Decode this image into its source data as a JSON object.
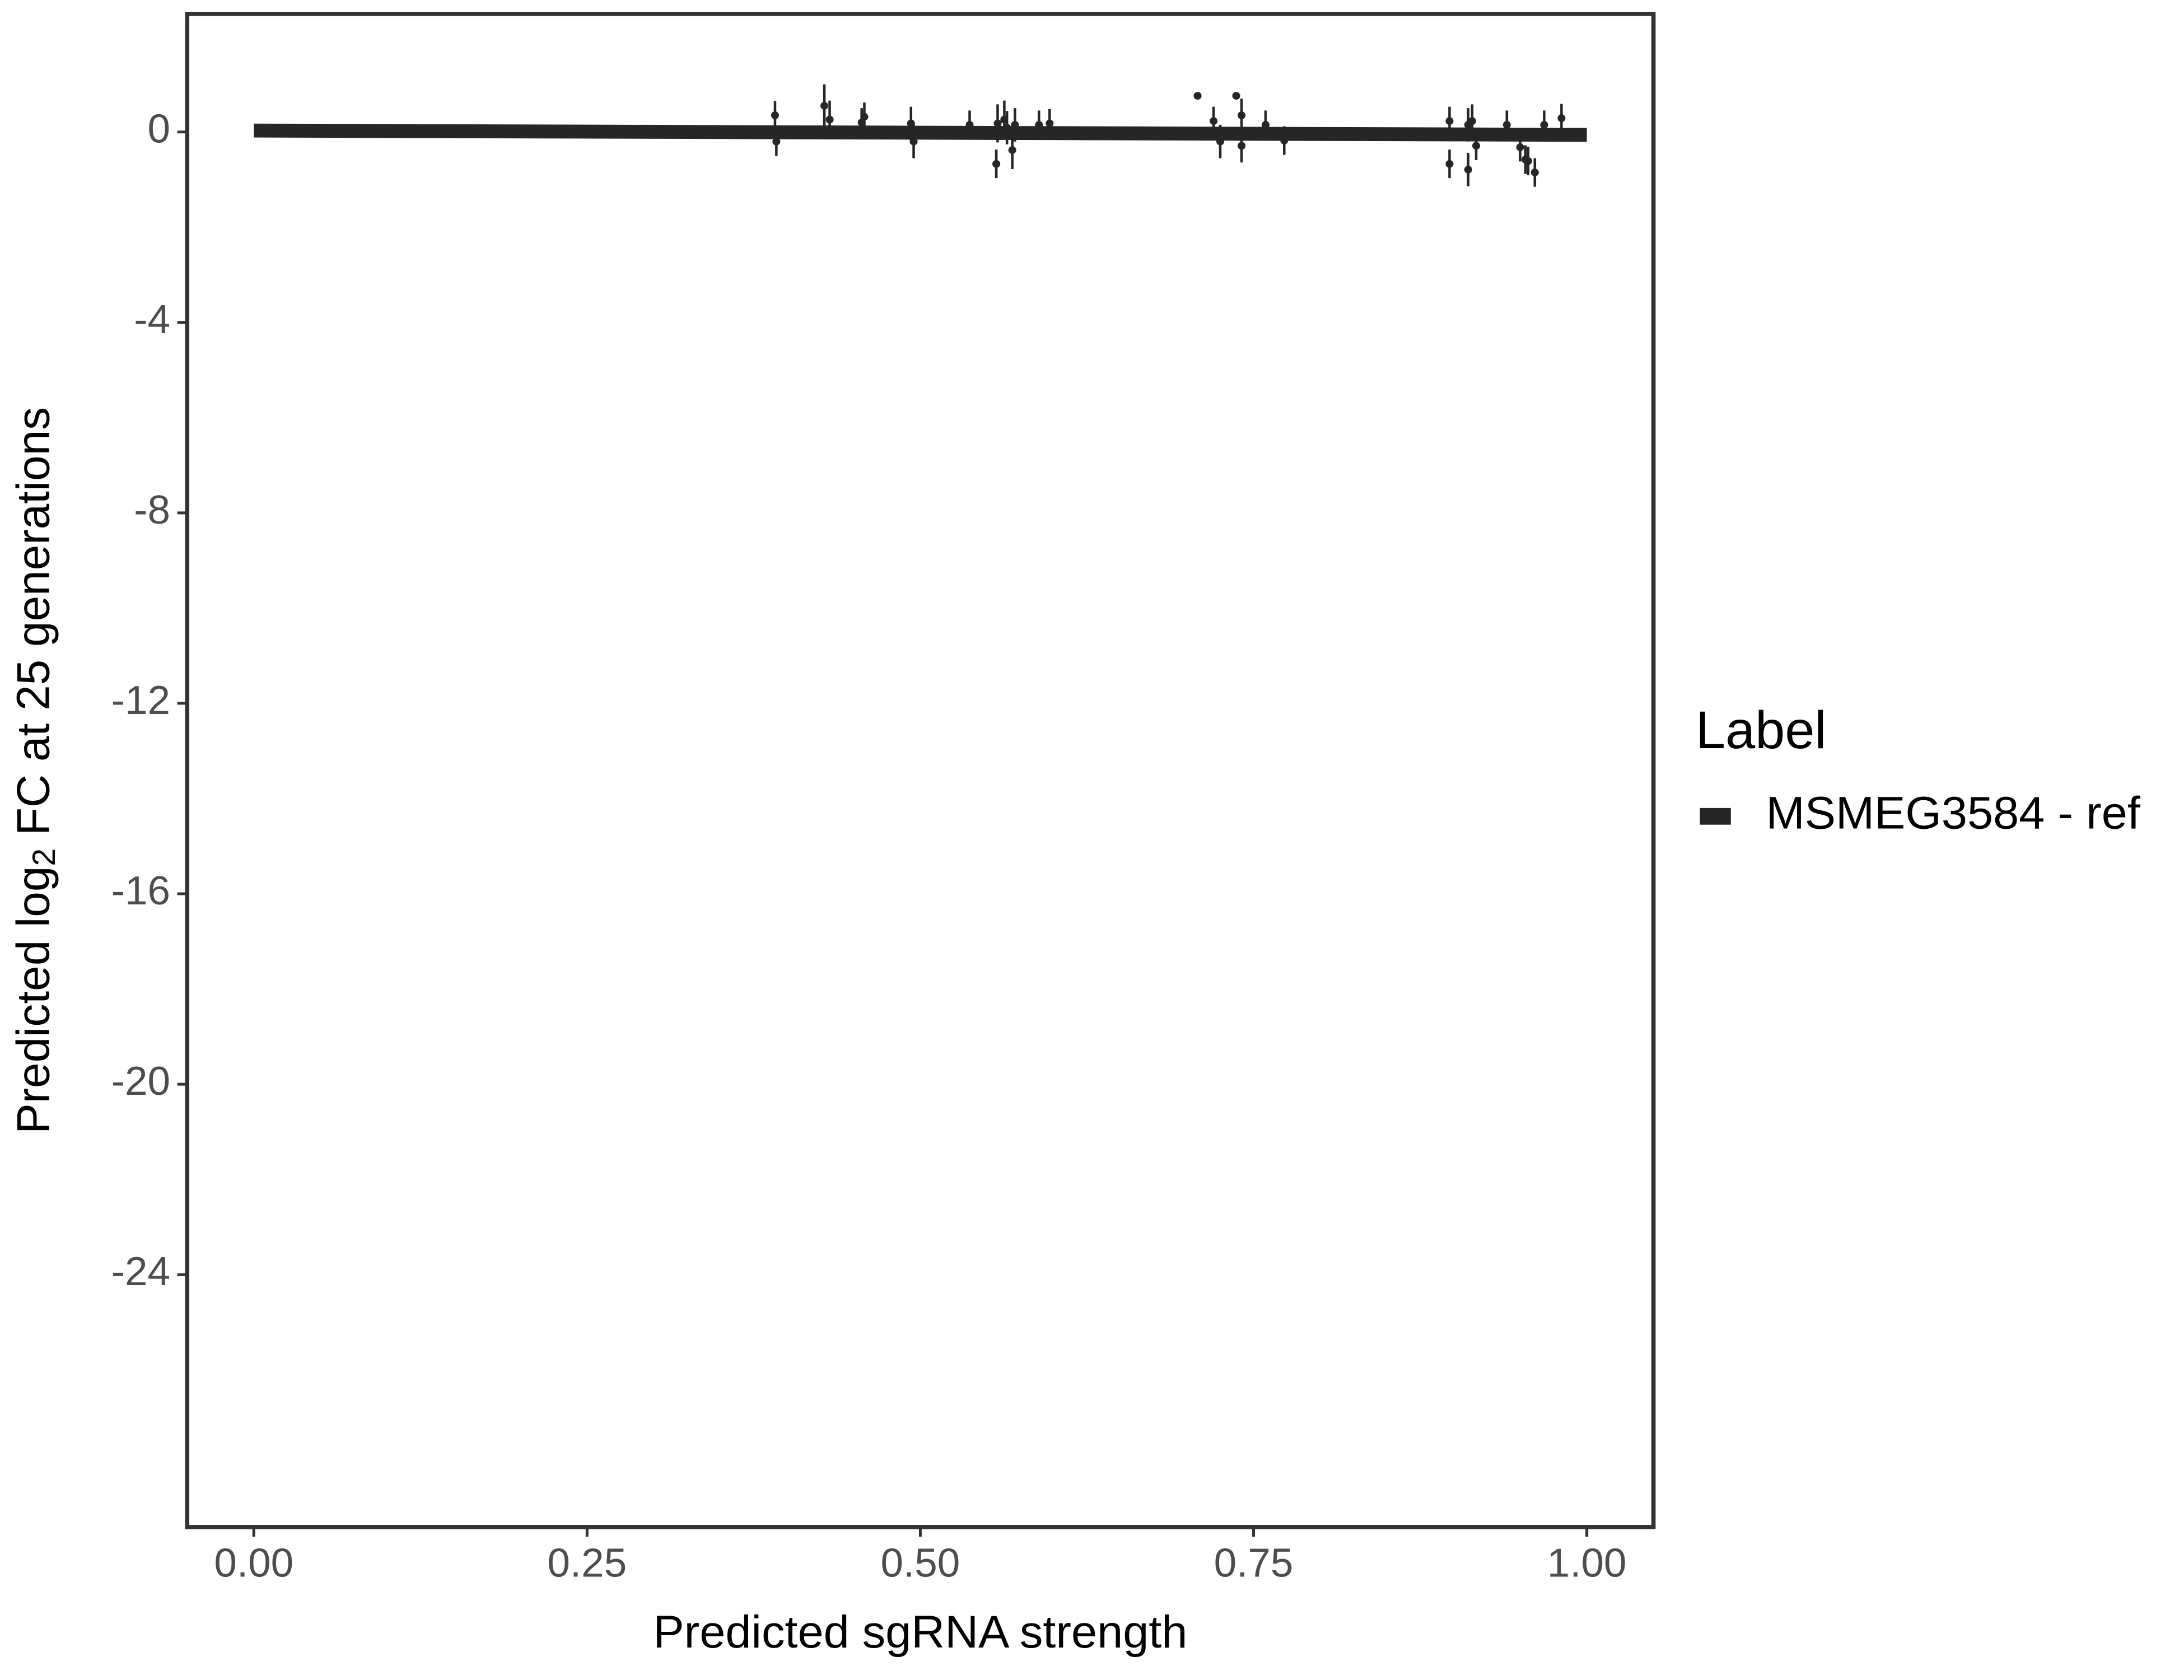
{
  "chart_data": {
    "type": "scatter",
    "xlabel": "Predicted sgRNA strength",
    "ylabel_parts": [
      "Predicted  log",
      "2",
      " FC at 25 generations"
    ],
    "legend_title": "Label",
    "xlim": [
      -0.05,
      1.05
    ],
    "ylim": [
      -29.3,
      2.48
    ],
    "xticks": [
      {
        "value": 0,
        "label": "0.00"
      },
      {
        "value": 0.25,
        "label": "0.25"
      },
      {
        "value": 0.5,
        "label": "0.50"
      },
      {
        "value": 0.75,
        "label": "0.75"
      },
      {
        "value": 1,
        "label": "1.00"
      }
    ],
    "yticks": [
      0,
      -4,
      -8,
      -12,
      -16,
      -20,
      -24
    ],
    "series": [
      {
        "name": "MSMEG3584 - ref",
        "color": "#262626",
        "x": [
          0,
          1
        ],
        "values": [
          0.03,
          -0.06
        ]
      }
    ],
    "points": {
      "color": "#262626",
      "x": [
        0.391,
        0.392,
        0.428,
        0.432,
        0.456,
        0.458,
        0.493,
        0.495,
        0.537,
        0.557,
        0.558,
        0.563,
        0.565,
        0.569,
        0.571,
        0.589,
        0.597,
        0.708,
        0.72,
        0.725,
        0.737,
        0.741,
        0.741,
        0.759,
        0.773,
        0.897,
        0.897,
        0.911,
        0.911,
        0.914,
        0.917,
        0.94,
        0.95,
        0.954,
        0.956,
        0.961,
        0.968,
        0.981
      ],
      "values": [
        0.35,
        -0.2,
        0.55,
        0.26,
        0.2,
        0.32,
        0.18,
        -0.2,
        0.15,
        -0.67,
        0.18,
        0.26,
        0.09,
        -0.38,
        0.15,
        0.15,
        0.18,
        0.76,
        0.23,
        -0.2,
        0.76,
        0.35,
        -0.29,
        0.15,
        -0.18,
        0.23,
        -0.67,
        0.15,
        -0.79,
        0.23,
        -0.29,
        0.15,
        -0.32,
        -0.58,
        -0.61,
        -0.85,
        0.15,
        0.29
      ],
      "errors": [
        0.3,
        0.3,
        0.45,
        0.4,
        0.3,
        0.3,
        0.35,
        0.35,
        0.3,
        0.3,
        0.4,
        0.4,
        0.35,
        0.4,
        0.35,
        0.3,
        0.3,
        0,
        0.3,
        0.35,
        0,
        0.35,
        0.35,
        0.3,
        0.3,
        0.3,
        0.3,
        0.35,
        0.35,
        0.35,
        0.3,
        0.3,
        0.3,
        0.3,
        0.3,
        0.3,
        0.3,
        0.3
      ]
    }
  }
}
